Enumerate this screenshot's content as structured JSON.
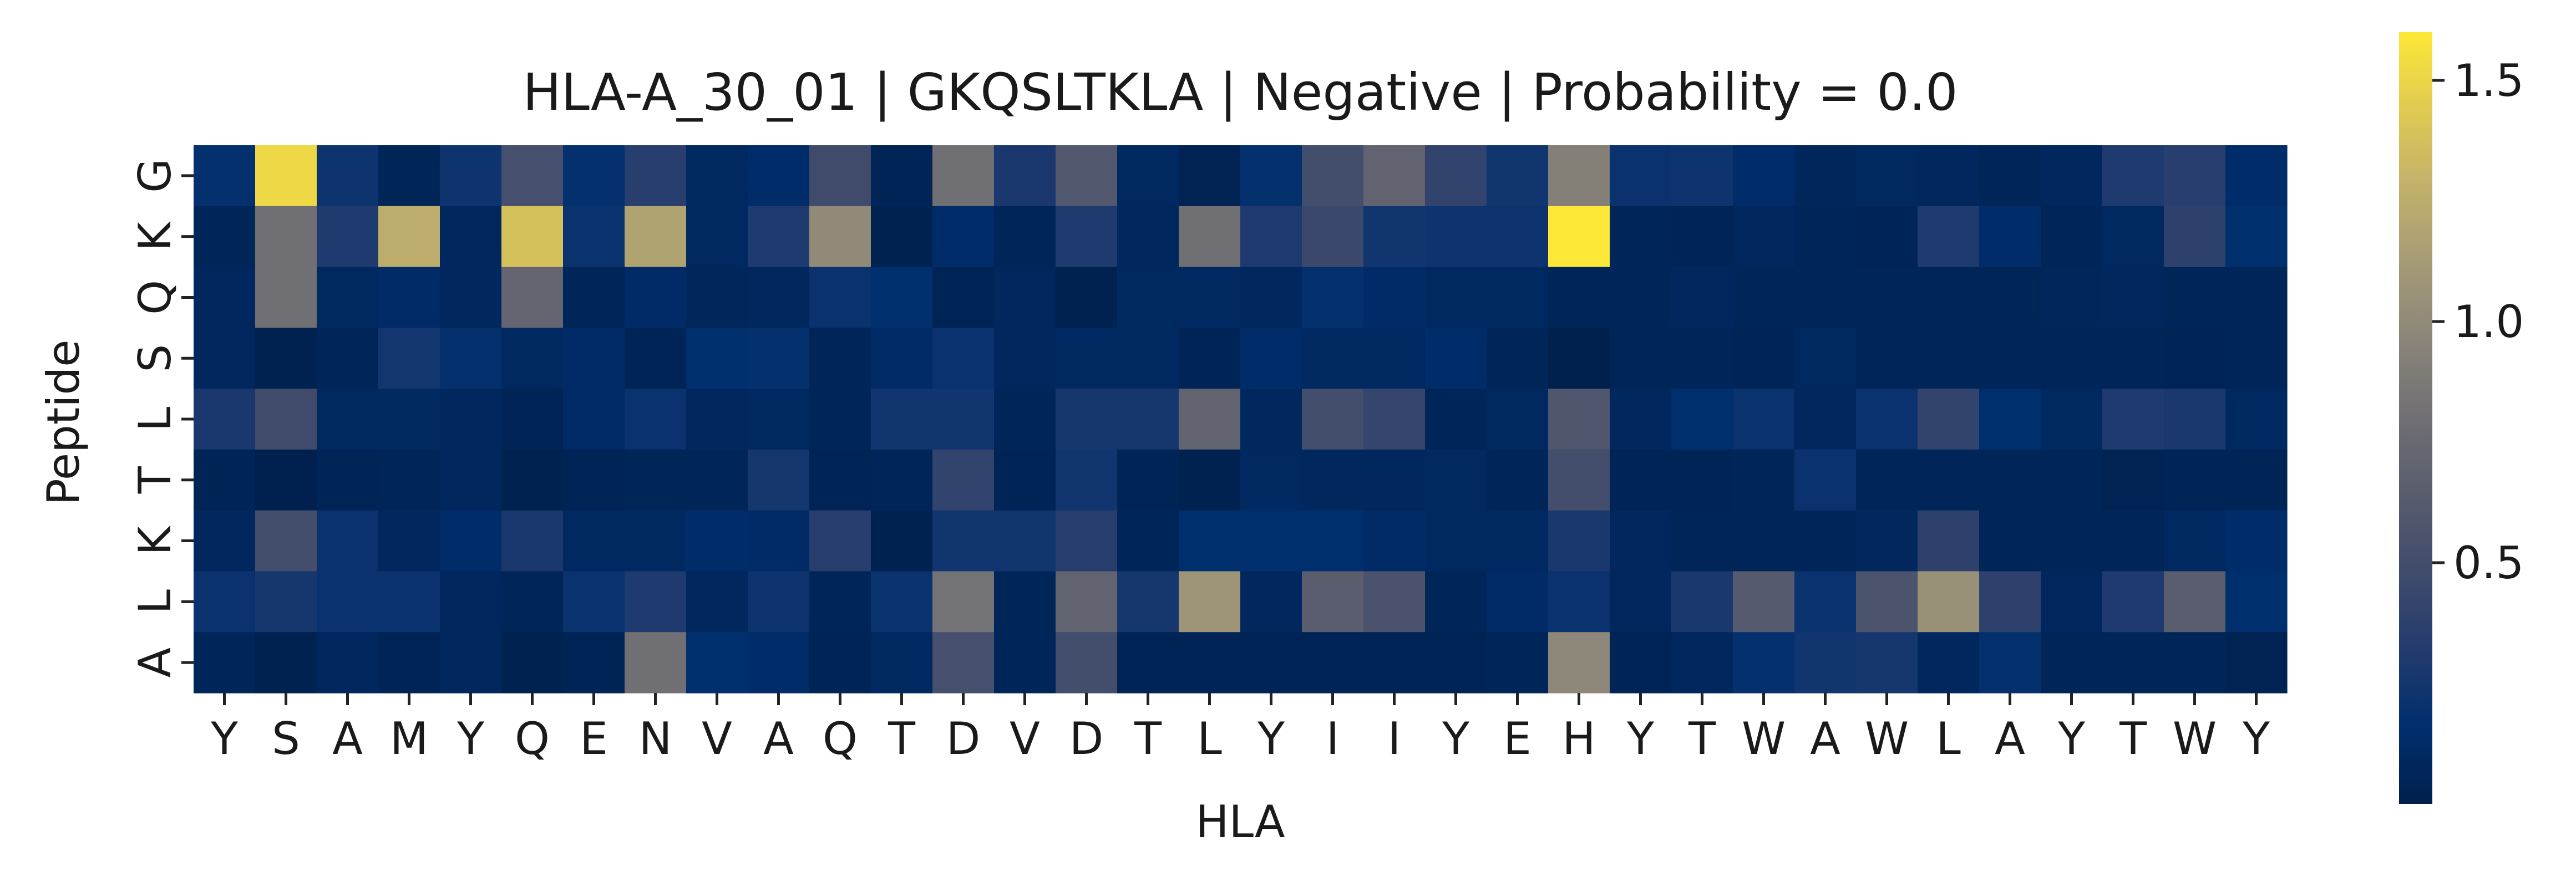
{
  "chart_data": {
    "type": "heatmap",
    "title": "HLA-A_30_01 | GKQSLTKLA | Negative | Probability = 0.0",
    "xlabel": "HLA",
    "ylabel": "Peptide",
    "x_tick_labels": [
      "Y",
      "S",
      "A",
      "M",
      "Y",
      "Q",
      "E",
      "N",
      "V",
      "A",
      "Q",
      "T",
      "D",
      "V",
      "D",
      "T",
      "L",
      "Y",
      "I",
      "I",
      "Y",
      "E",
      "H",
      "Y",
      "T",
      "W",
      "A",
      "W",
      "L",
      "A",
      "Y",
      "T",
      "W",
      "Y"
    ],
    "y_tick_labels": [
      "G",
      "K",
      "Q",
      "S",
      "L",
      "T",
      "K",
      "L",
      "A"
    ],
    "colormap": "cividis",
    "colorbar": {
      "min": 0.0,
      "max": 1.6,
      "ticks": [
        0.5,
        1.0,
        1.5
      ],
      "tick_labels": [
        "0.5",
        "1.0",
        "1.5"
      ]
    },
    "values": [
      [
        0.18,
        1.52,
        0.22,
        0.05,
        0.22,
        0.52,
        0.18,
        0.35,
        0.1,
        0.14,
        0.48,
        0.04,
        0.8,
        0.28,
        0.6,
        0.1,
        0.03,
        0.18,
        0.5,
        0.7,
        0.4,
        0.24,
        0.92,
        0.2,
        0.22,
        0.14,
        0.07,
        0.1,
        0.08,
        0.06,
        0.08,
        0.3,
        0.35,
        0.14
      ],
      [
        0.06,
        0.8,
        0.3,
        1.25,
        0.08,
        1.38,
        0.2,
        1.18,
        0.1,
        0.3,
        1.0,
        0.02,
        0.14,
        0.06,
        0.3,
        0.08,
        0.8,
        0.3,
        0.45,
        0.24,
        0.22,
        0.22,
        1.6,
        0.06,
        0.04,
        0.08,
        0.06,
        0.04,
        0.3,
        0.14,
        0.06,
        0.1,
        0.38,
        0.16
      ],
      [
        0.08,
        0.8,
        0.1,
        0.12,
        0.08,
        0.72,
        0.06,
        0.12,
        0.07,
        0.08,
        0.2,
        0.16,
        0.04,
        0.08,
        0.02,
        0.1,
        0.1,
        0.08,
        0.18,
        0.12,
        0.1,
        0.1,
        0.06,
        0.06,
        0.08,
        0.06,
        0.06,
        0.06,
        0.05,
        0.05,
        0.07,
        0.08,
        0.06,
        0.06
      ],
      [
        0.08,
        0.02,
        0.06,
        0.25,
        0.18,
        0.1,
        0.12,
        0.04,
        0.16,
        0.18,
        0.06,
        0.12,
        0.2,
        0.08,
        0.1,
        0.1,
        0.04,
        0.14,
        0.1,
        0.1,
        0.14,
        0.06,
        0.0,
        0.06,
        0.06,
        0.04,
        0.1,
        0.06,
        0.06,
        0.06,
        0.06,
        0.05,
        0.04,
        0.06
      ],
      [
        0.28,
        0.48,
        0.1,
        0.1,
        0.08,
        0.04,
        0.12,
        0.2,
        0.08,
        0.1,
        0.06,
        0.24,
        0.24,
        0.06,
        0.26,
        0.26,
        0.7,
        0.08,
        0.5,
        0.42,
        0.06,
        0.1,
        0.58,
        0.08,
        0.16,
        0.2,
        0.08,
        0.2,
        0.4,
        0.16,
        0.1,
        0.3,
        0.28,
        0.1
      ],
      [
        0.04,
        0.01,
        0.04,
        0.06,
        0.08,
        0.02,
        0.04,
        0.05,
        0.06,
        0.26,
        0.04,
        0.06,
        0.4,
        0.04,
        0.24,
        0.04,
        0.02,
        0.1,
        0.08,
        0.08,
        0.1,
        0.06,
        0.5,
        0.04,
        0.04,
        0.06,
        0.2,
        0.06,
        0.06,
        0.06,
        0.06,
        0.03,
        0.04,
        0.04
      ],
      [
        0.08,
        0.5,
        0.2,
        0.08,
        0.14,
        0.28,
        0.1,
        0.1,
        0.14,
        0.12,
        0.34,
        0.02,
        0.24,
        0.24,
        0.34,
        0.06,
        0.16,
        0.16,
        0.16,
        0.12,
        0.1,
        0.1,
        0.28,
        0.08,
        0.05,
        0.06,
        0.06,
        0.08,
        0.38,
        0.06,
        0.06,
        0.06,
        0.1,
        0.14
      ],
      [
        0.2,
        0.26,
        0.2,
        0.2,
        0.08,
        0.06,
        0.2,
        0.3,
        0.08,
        0.22,
        0.06,
        0.2,
        0.82,
        0.06,
        0.7,
        0.26,
        1.08,
        0.08,
        0.65,
        0.55,
        0.06,
        0.12,
        0.2,
        0.08,
        0.28,
        0.62,
        0.2,
        0.56,
        1.05,
        0.38,
        0.08,
        0.3,
        0.65,
        0.16
      ],
      [
        0.06,
        0.02,
        0.08,
        0.04,
        0.08,
        0.02,
        0.04,
        0.8,
        0.16,
        0.14,
        0.04,
        0.1,
        0.52,
        0.06,
        0.5,
        0.04,
        0.04,
        0.04,
        0.04,
        0.04,
        0.04,
        0.06,
        0.98,
        0.04,
        0.08,
        0.18,
        0.24,
        0.26,
        0.08,
        0.18,
        0.06,
        0.06,
        0.06,
        0.03
      ]
    ]
  }
}
